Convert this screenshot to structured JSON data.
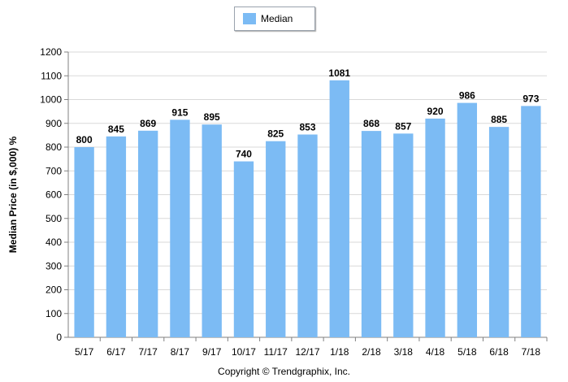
{
  "chart_data": {
    "type": "bar",
    "categories": [
      "5/17",
      "6/17",
      "7/17",
      "8/17",
      "9/17",
      "10/17",
      "11/17",
      "12/17",
      "1/18",
      "2/18",
      "3/18",
      "4/18",
      "5/18",
      "6/18",
      "7/18"
    ],
    "series": [
      {
        "name": "Median",
        "values": [
          800,
          845,
          869,
          915,
          895,
          740,
          825,
          853,
          1081,
          868,
          857,
          920,
          986,
          885,
          973
        ],
        "color": "#7cbbf4"
      }
    ],
    "title": "",
    "xlabel": "",
    "ylabel": "Median Price (in $,000) %",
    "ylim": [
      0,
      1200
    ],
    "yticks": [
      0,
      100,
      200,
      300,
      400,
      500,
      600,
      700,
      800,
      900,
      1000,
      1100,
      1200
    ],
    "grid": true,
    "legend": "top-center",
    "data_labels": true
  },
  "footer": {
    "copyright": "Copyright © Trendgraphix, Inc."
  }
}
